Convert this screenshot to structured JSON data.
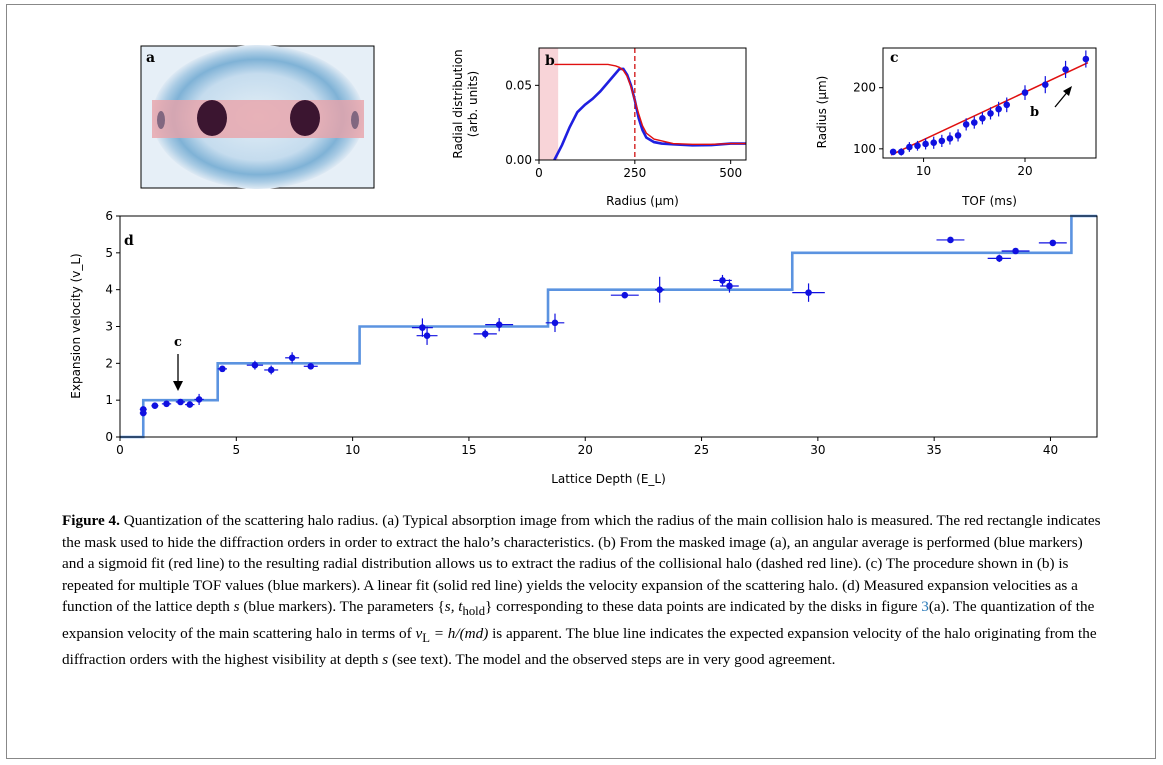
{
  "chart_data": [
    {
      "panel": "b",
      "type": "line",
      "xlabel": "Radius (μm)",
      "ylabel_line1": "Radial distribution",
      "ylabel_line2": "(arb. units)",
      "xlim": [
        0,
        540
      ],
      "ylim": [
        0,
        0.075
      ],
      "xticks": [
        0,
        250,
        500
      ],
      "yticks": [
        0.0,
        0.05
      ],
      "ytick_labels": [
        "0.00",
        "0.05"
      ],
      "dashed_line_x": 250,
      "shaded_x": [
        0,
        50
      ],
      "series": [
        {
          "color": "#1f1fe0",
          "x": [
            40,
            60,
            80,
            100,
            120,
            140,
            160,
            180,
            200,
            210,
            220,
            230,
            240,
            250,
            260,
            270,
            280,
            300,
            320,
            350,
            400,
            450,
            500,
            540
          ],
          "y": [
            0.0,
            0.01,
            0.022,
            0.032,
            0.037,
            0.041,
            0.046,
            0.052,
            0.058,
            0.061,
            0.061,
            0.057,
            0.05,
            0.04,
            0.028,
            0.02,
            0.015,
            0.012,
            0.011,
            0.0105,
            0.0098,
            0.01,
            0.011,
            0.011
          ]
        },
        {
          "color": "#e01010",
          "x": [
            40,
            60,
            100,
            150,
            180,
            200,
            210,
            220,
            230,
            240,
            250,
            260,
            270,
            280,
            300,
            350,
            400,
            450,
            500,
            540
          ],
          "y": [
            0.064,
            0.064,
            0.064,
            0.064,
            0.064,
            0.063,
            0.062,
            0.06,
            0.056,
            0.049,
            0.04,
            0.031,
            0.023,
            0.018,
            0.014,
            0.011,
            0.0105,
            0.0105,
            0.011,
            0.011
          ]
        }
      ]
    },
    {
      "panel": "c",
      "type": "scatter",
      "xlabel": "TOF (ms)",
      "ylabel": "Radius (μm)",
      "xlim": [
        6,
        27
      ],
      "ylim": [
        85,
        265
      ],
      "xticks": [
        10,
        20
      ],
      "yticks": [
        100,
        200
      ],
      "points": {
        "x": [
          7,
          7.8,
          8.6,
          9.4,
          10.2,
          11,
          11.8,
          12.6,
          13.4,
          14.2,
          15,
          15.8,
          16.6,
          17.4,
          18.2,
          20,
          22,
          24,
          26
        ],
        "y": [
          95,
          95,
          103,
          105,
          108,
          110,
          113,
          117,
          122,
          140,
          143,
          150,
          158,
          165,
          172,
          192,
          205,
          230,
          247
        ],
        "yerr": [
          5,
          6,
          8,
          8,
          9,
          10,
          10,
          10,
          10,
          10,
          10,
          10,
          10,
          12,
          12,
          12,
          14,
          14,
          14
        ]
      },
      "fit": {
        "x": [
          6.8,
          26.2
        ],
        "y": [
          90,
          241
        ]
      },
      "annotation": "b"
    },
    {
      "panel": "d",
      "type": "scatter",
      "xlabel": "Lattice Depth (E_L)",
      "ylabel": "Expansion velocity (v_L)",
      "xlim": [
        0,
        42
      ],
      "ylim": [
        0,
        6
      ],
      "xticks": [
        0,
        5,
        10,
        15,
        20,
        25,
        30,
        35,
        40
      ],
      "yticks": [
        0,
        1,
        2,
        3,
        4,
        5,
        6
      ],
      "annotation": "c",
      "steps": {
        "x": [
          0,
          1.0,
          1.0,
          4.2,
          4.2,
          10.3,
          10.3,
          18.4,
          18.4,
          28.9,
          28.9,
          40.9,
          40.9,
          42
        ],
        "y": [
          0,
          0,
          1,
          1,
          2,
          2,
          3,
          3,
          4,
          4,
          5,
          5,
          6,
          6
        ]
      },
      "points": {
        "x": [
          1.0,
          1.0,
          1.5,
          2.0,
          2.6,
          3.0,
          3.4,
          4.4,
          5.8,
          6.5,
          7.4,
          8.2,
          13.0,
          13.2,
          15.7,
          16.3,
          18.7,
          21.7,
          23.2,
          25.9,
          26.2,
          29.6,
          35.7,
          37.8,
          38.5,
          40.1
        ],
        "y": [
          0.65,
          0.75,
          0.85,
          0.9,
          0.95,
          0.88,
          1.02,
          1.85,
          1.95,
          1.82,
          2.15,
          1.92,
          2.97,
          2.75,
          2.8,
          3.05,
          3.1,
          3.85,
          4.0,
          4.25,
          4.1,
          3.92,
          5.35,
          4.85,
          5.05,
          5.27
        ],
        "xerr": [
          0.15,
          0.15,
          0.15,
          0.2,
          0.2,
          0.2,
          0.2,
          0.2,
          0.35,
          0.3,
          0.3,
          0.3,
          0.45,
          0.45,
          0.5,
          0.6,
          0.4,
          0.6,
          0.2,
          0.4,
          0.4,
          0.7,
          0.6,
          0.5,
          0.6,
          0.6
        ],
        "yerr": [
          0.08,
          0.08,
          0.08,
          0.08,
          0.08,
          0.08,
          0.15,
          0.08,
          0.12,
          0.12,
          0.15,
          0.08,
          0.25,
          0.25,
          0.12,
          0.18,
          0.25,
          0.06,
          0.35,
          0.15,
          0.18,
          0.25,
          0.06,
          0.1,
          0.05,
          0.06
        ]
      }
    }
  ],
  "panel_labels": {
    "a": "a",
    "b": "b",
    "c": "c",
    "d": "d"
  },
  "caption": {
    "figure_label": "Figure 4.",
    "text_1": " Quantization of the scattering halo radius. (a) Typical absorption image from which the radius of the main collision halo is measured. The red rectangle indicates the mask used to hide the diffraction orders in order to extract the halo’s characteristics. (b) From the masked image (a), an angular average is performed (blue markers) and a sigmoid fit (red line) to the resulting radial distribution allows us to extract the radius of the collisional halo (dashed red line). (c) The procedure shown in (b) is repeated for multiple TOF values (blue markers). A linear fit (solid red line) yields the velocity expansion of the scattering halo. (d) Measured expansion velocities as a function of the lattice depth ",
    "s_1": "s",
    "text_2": " (blue markers). The parameters {",
    "params": "s, t",
    "params_sub": "hold",
    "text_3": "} corresponding to these data points are indicated by the disks in figure ",
    "fig_ref": "3",
    "text_4": "(a). The quantization of the expansion velocity of the main scattering halo in terms of ",
    "formula": "v",
    "formula_sub": "L",
    "formula_rest": " = h/(md)",
    "text_5": " is apparent. The blue line indicates the expected expansion velocity of the halo originating from the diffraction orders with the highest visibility at depth ",
    "s_2": "s",
    "text_6": " (see text). The model and the observed steps are in very good agreement."
  }
}
